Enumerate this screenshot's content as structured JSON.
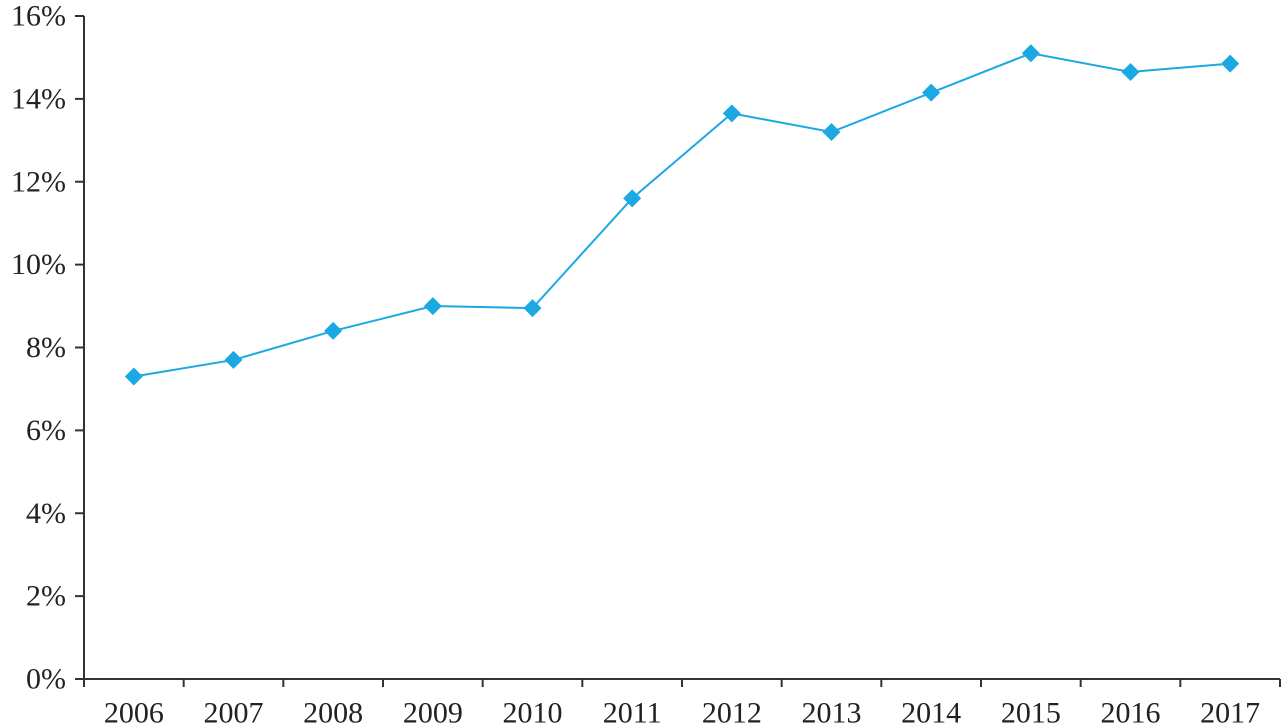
{
  "chart_data": {
    "type": "line",
    "title": "",
    "xlabel": "",
    "ylabel": "",
    "categories": [
      "2006",
      "2007",
      "2008",
      "2009",
      "2010",
      "2011",
      "2012",
      "2013",
      "2014",
      "2015",
      "2016",
      "2017"
    ],
    "series": [
      {
        "values": [
          7.3,
          7.7,
          8.4,
          9.0,
          8.95,
          11.6,
          13.65,
          13.2,
          14.15,
          15.1,
          14.65,
          14.85
        ],
        "color": "#1ba8e3",
        "marker": "diamond"
      }
    ],
    "ylim": [
      0,
      16
    ],
    "yticks": [
      0,
      2,
      4,
      6,
      8,
      10,
      12,
      14,
      16
    ],
    "ytick_labels": [
      "0%",
      "2%",
      "4%",
      "6%",
      "8%",
      "10%",
      "12%",
      "14%",
      "16%"
    ],
    "grid": false,
    "legend": "none"
  }
}
